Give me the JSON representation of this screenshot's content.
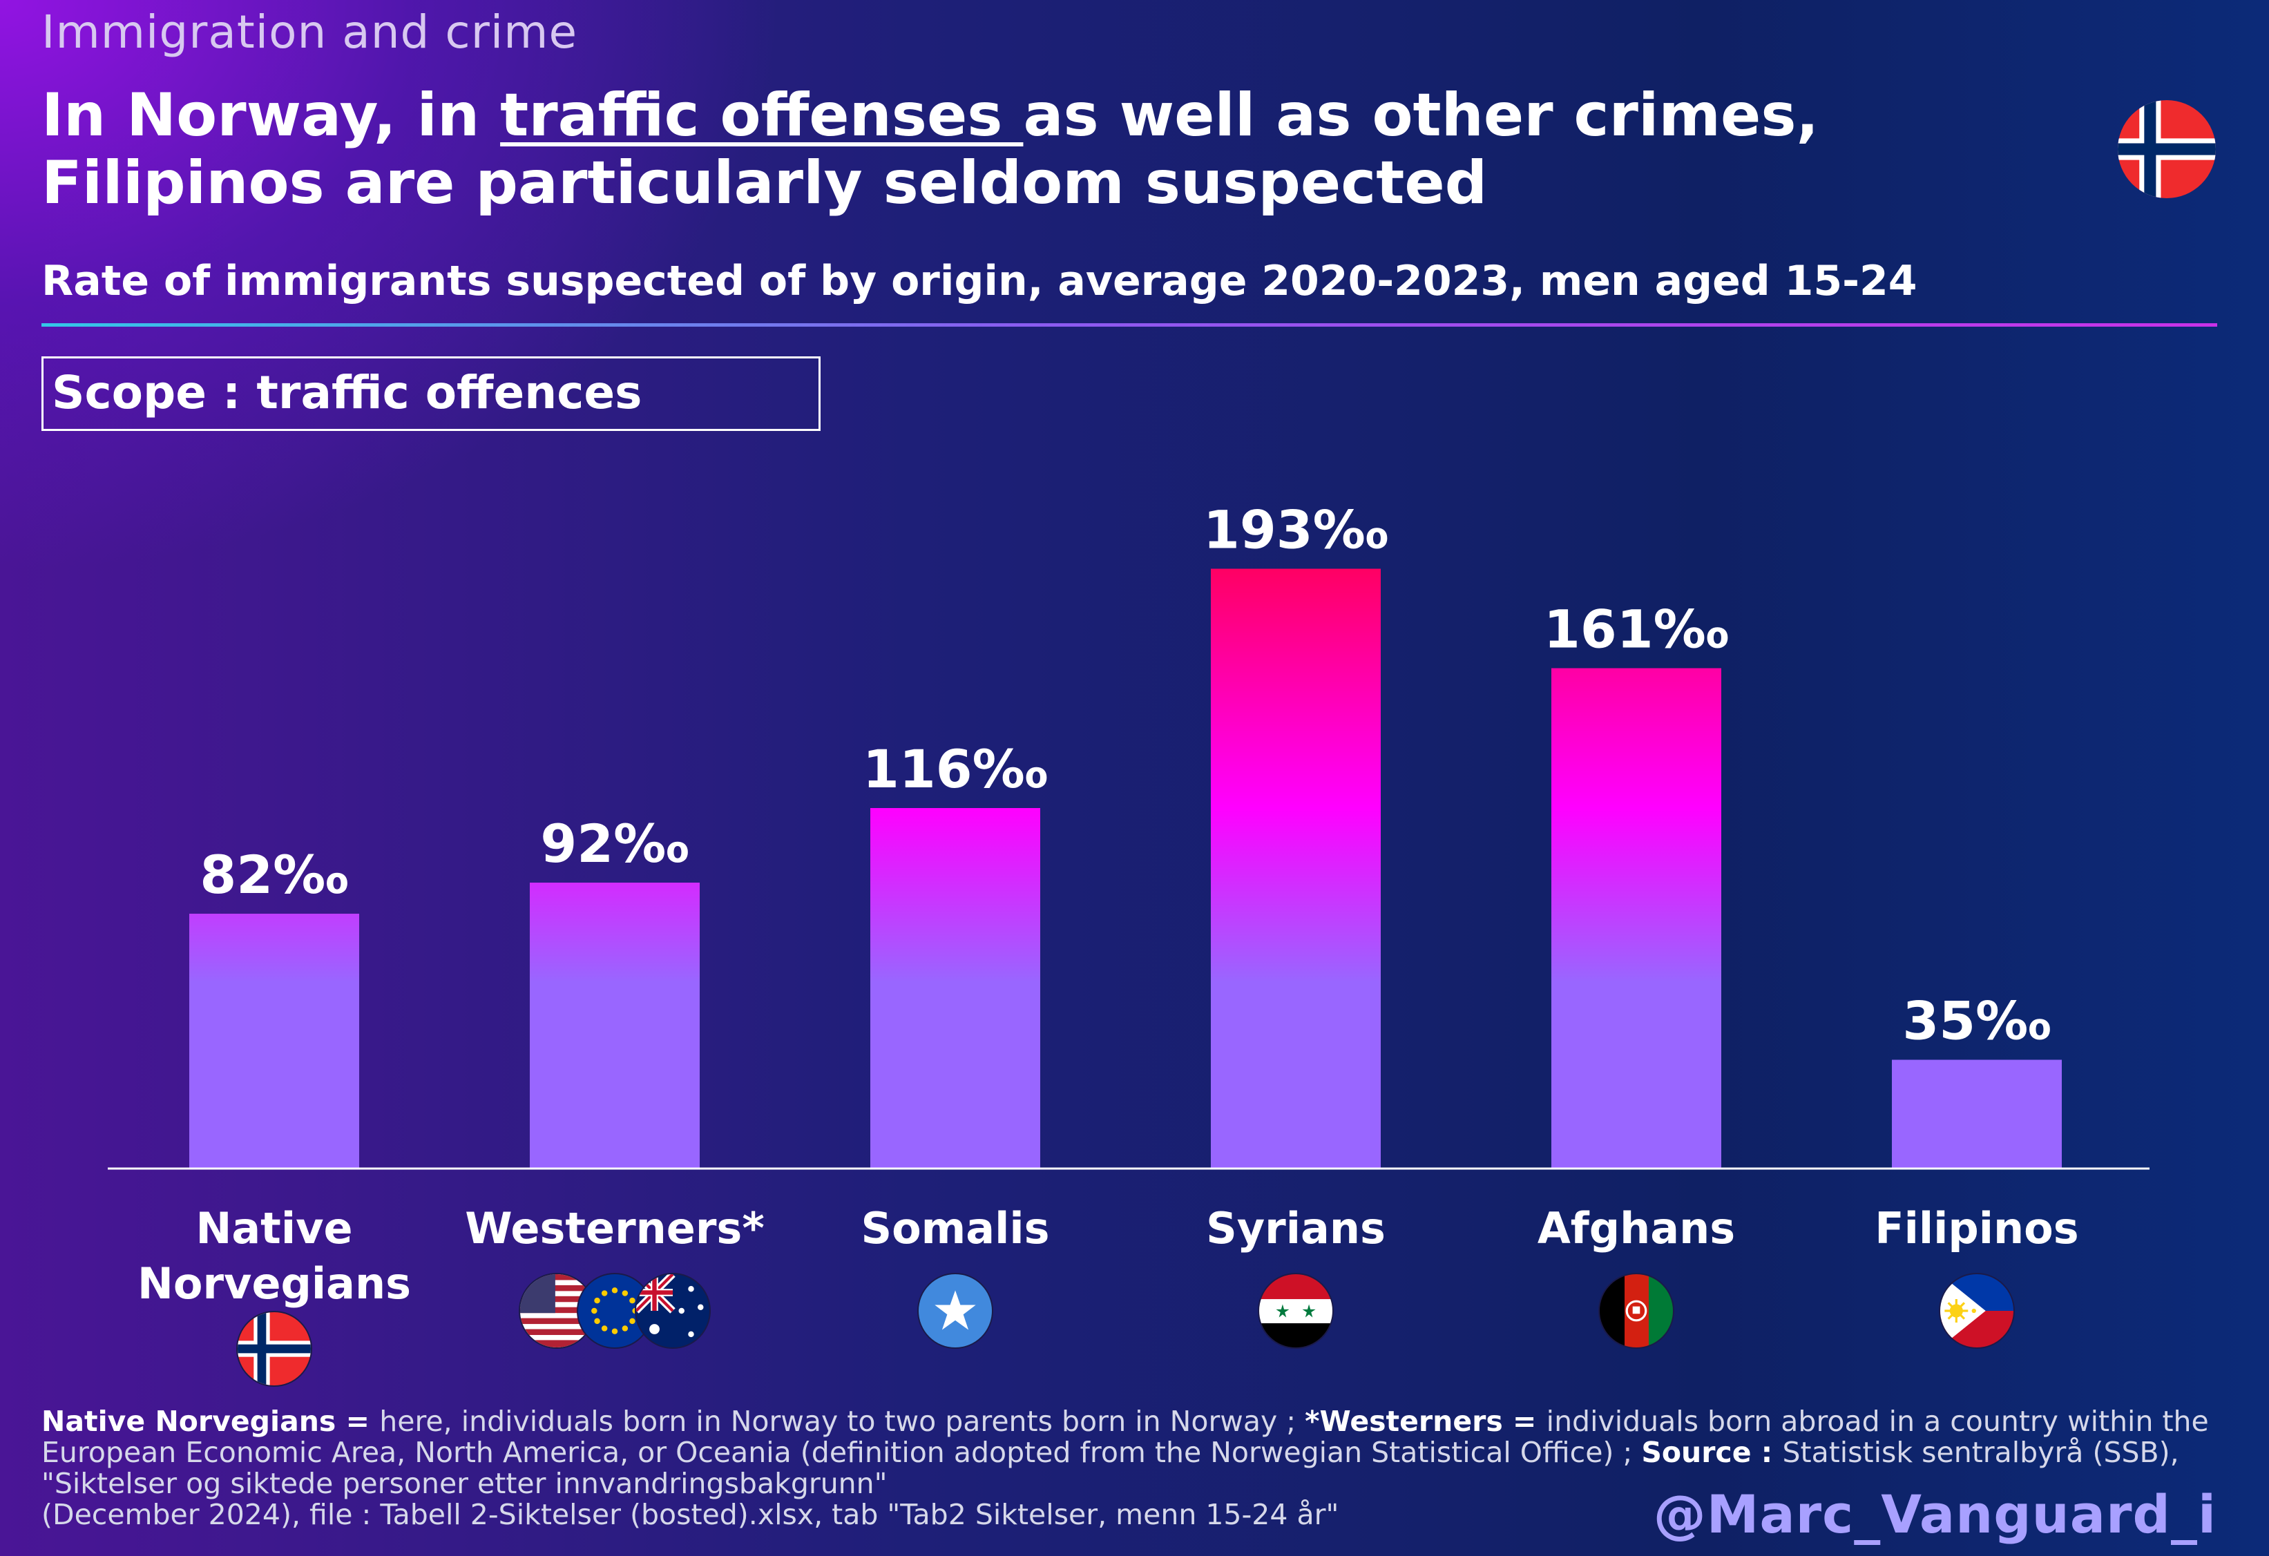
{
  "header": {
    "kicker": "Immigration and crime",
    "title_part1": "In Norway, in ",
    "title_underlined": "traffic offenses ",
    "title_part2": "as well as other crimes, Filipinos are particularly seldom suspected",
    "subtitle": "Rate of immigrants suspected of by origin, average 2020-2023, men aged 15-24",
    "scope": "Scope : traffic offences"
  },
  "chart_data": {
    "type": "bar",
    "categories": [
      "Native Norvegians",
      "Westerners*",
      "Somalis",
      "Syrians",
      "Afghans",
      "Filipinos"
    ],
    "values": [
      82,
      92,
      116,
      193,
      161,
      35
    ],
    "data_labels": [
      "82‰",
      "92‰",
      "116‰",
      "193‰",
      "161‰",
      "35‰"
    ],
    "unit": "‰",
    "ylim": [
      0,
      200
    ],
    "title": "",
    "xlabel": "",
    "ylabel": "",
    "grid": false,
    "legend": "none",
    "category_flags": [
      [
        "norway-flag-icon"
      ],
      [
        "usa-flag-icon",
        "eu-flag-icon",
        "australia-flag-icon"
      ],
      [
        "somalia-flag-icon"
      ],
      [
        "syria-flag-icon"
      ],
      [
        "afghanistan-flag-icon"
      ],
      [
        "philippines-flag-icon"
      ]
    ],
    "colors": {
      "bar_base": "#9966ff",
      "bar_mid": "#ff00ff",
      "bar_top": "#ff0055"
    }
  },
  "footnote": {
    "native_label": "Native Norvegians = ",
    "native_text": "here, individuals born in Norway to two parents born in Norway ; ",
    "western_label": "*Westerners = ",
    "western_text": "individuals born abroad in a country within the European Economic Area, North America, or Oceania (definition adopted from the Norwegian Statistical Office) ; ",
    "source_label": "Source : ",
    "source_text": "Statistisk sentralbyrå (SSB), \"Siktelser og siktede personer etter innvandringsbakgrunn\"",
    "file_text": "(December 2024), file : Tabell 2-Siktelser (bosted).xlsx, tab \"Tab2 Siktelser, menn 15-24 år\""
  },
  "handle": "@Marc_Vanguard_i",
  "header_flag": "norway-flag-icon"
}
